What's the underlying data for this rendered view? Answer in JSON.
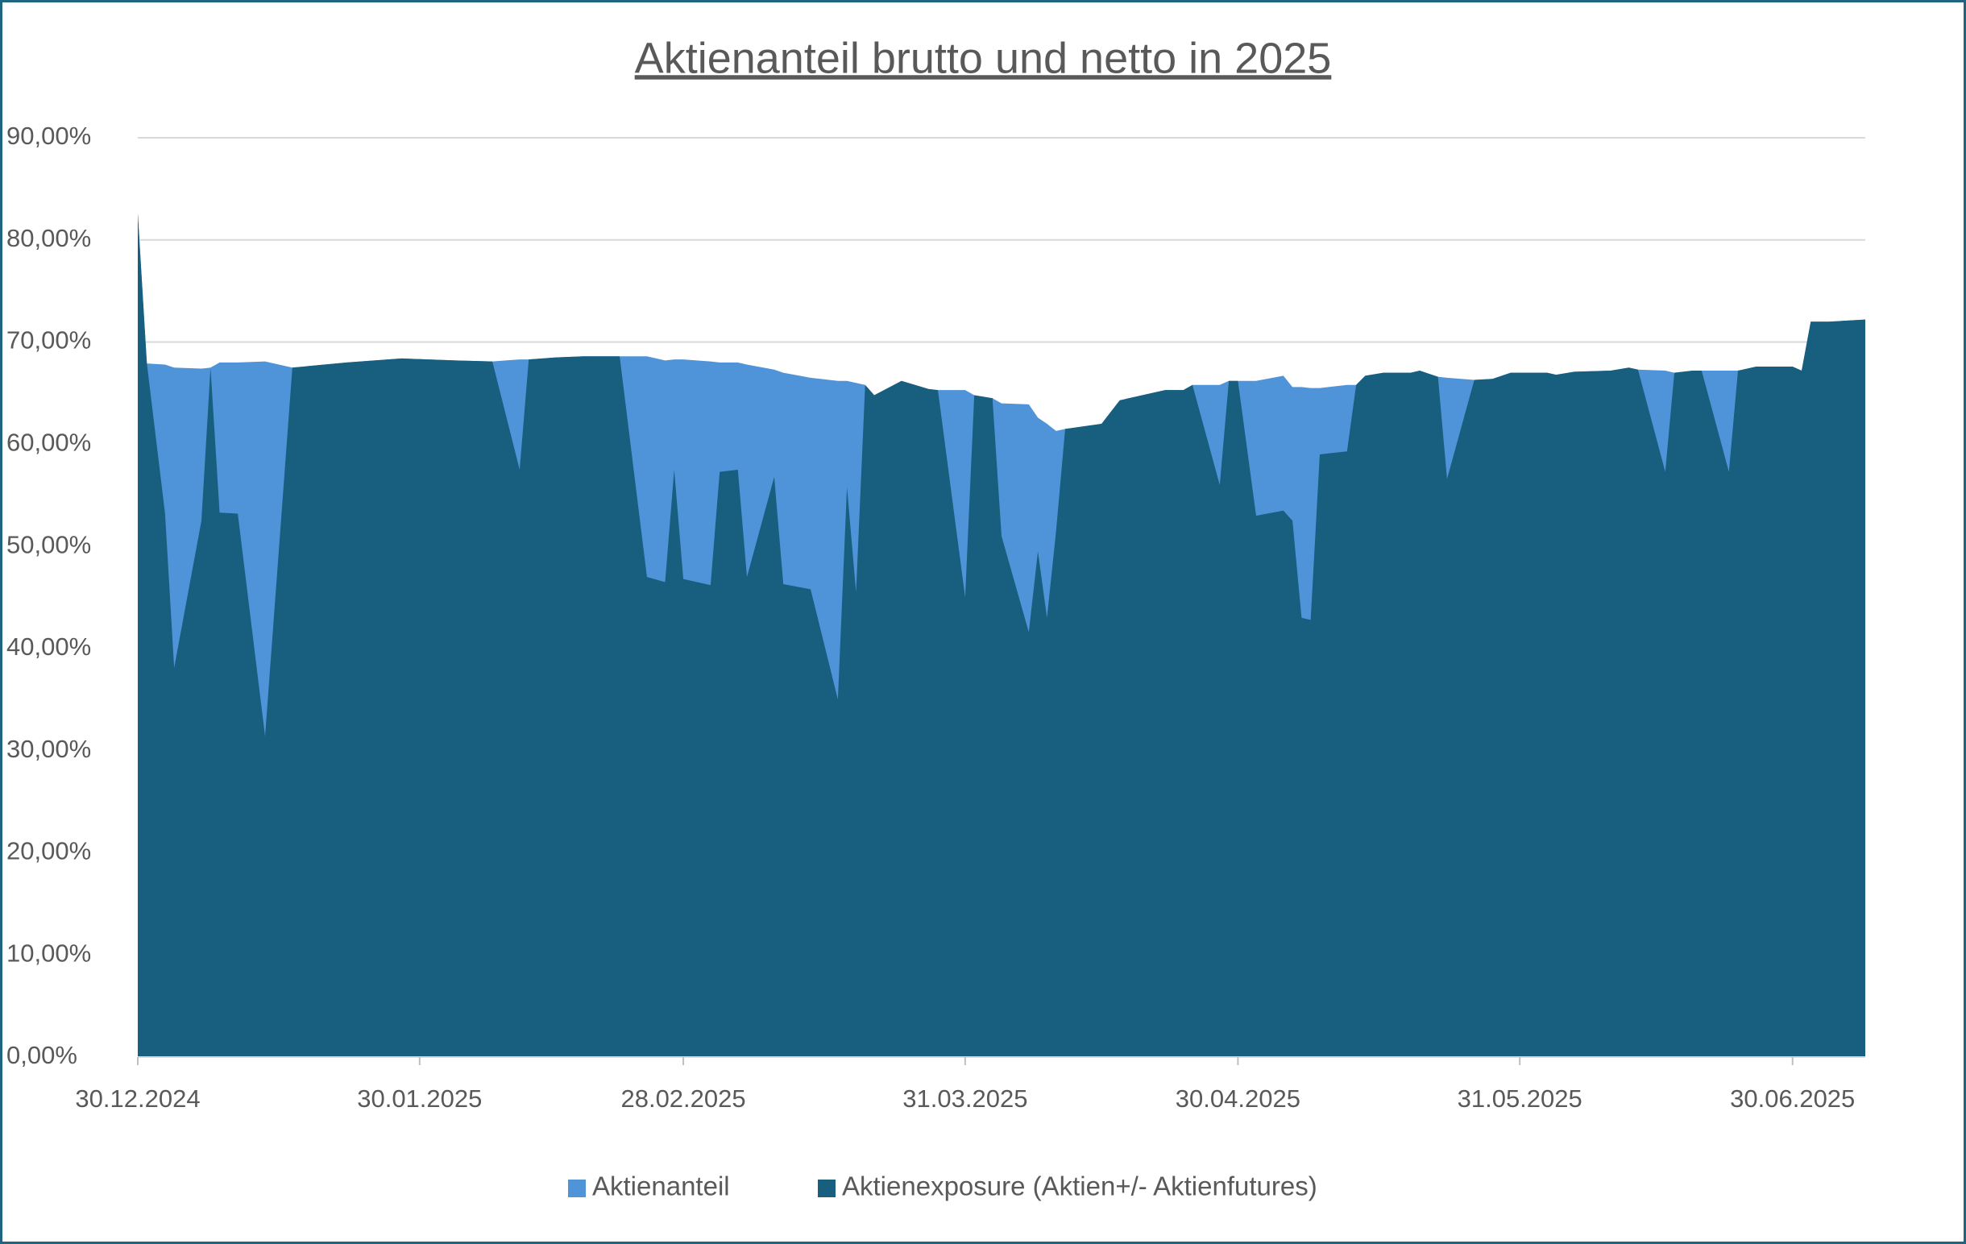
{
  "chart_data": {
    "type": "area",
    "title": "Aktienanteil brutto und netto in 2025",
    "x": [
      "30.12.2024",
      "31.12.2024",
      "02.01.2025",
      "03.01.2025",
      "06.01.2025",
      "07.01.2025",
      "08.01.2025",
      "10.01.2025",
      "13.01.2025",
      "16.01.2025",
      "22.01.2025",
      "28.01.2025",
      "03.02.2025",
      "07.02.2025",
      "10.02.2025",
      "11.02.2025",
      "14.02.2025",
      "17.02.2025",
      "21.02.2025",
      "24.02.2025",
      "26.02.2025",
      "27.02.2025",
      "28.02.2025",
      "03.03.2025",
      "04.03.2025",
      "06.03.2025",
      "07.03.2025",
      "10.03.2025",
      "11.03.2025",
      "14.03.2025",
      "17.03.2025",
      "18.03.2025",
      "19.03.2025",
      "20.03.2025",
      "21.03.2025",
      "24.03.2025",
      "27.03.2025",
      "28.03.2025",
      "31.03.2025",
      "01.04.2025",
      "03.04.2025",
      "04.04.2025",
      "07.04.2025",
      "08.04.2025",
      "09.04.2025",
      "10.04.2025",
      "11.04.2025",
      "15.04.2025",
      "17.04.2025",
      "22.04.2025",
      "24.04.2025",
      "25.04.2025",
      "28.04.2025",
      "29.04.2025",
      "30.04.2025",
      "02.05.2025",
      "05.05.2025",
      "06.05.2025",
      "07.05.2025",
      "08.05.2025",
      "09.05.2025",
      "12.05.2025",
      "13.05.2025",
      "14.05.2025",
      "16.05.2025",
      "19.05.2025",
      "20.05.2025",
      "22.05.2025",
      "23.05.2025",
      "26.05.2025",
      "28.05.2025",
      "30.05.2025",
      "03.06.2025",
      "04.06.2025",
      "06.06.2025",
      "10.06.2025",
      "12.06.2025",
      "13.06.2025",
      "16.06.2025",
      "17.06.2025",
      "19.06.2025",
      "20.06.2025",
      "23.06.2025",
      "24.06.2025",
      "26.06.2025",
      "30.06.2025",
      "01.07.2025",
      "02.07.2025",
      "04.07.2025",
      "08.07.2025"
    ],
    "series": [
      {
        "name": "Aktienanteil",
        "color": "#4f94d8",
        "values": [
          82.6,
          67.9,
          67.8,
          67.5,
          67.4,
          67.5,
          68,
          68,
          68.1,
          67.5,
          68,
          68.4,
          68.2,
          68.1,
          68.3,
          68.3,
          68.5,
          68.6,
          68.6,
          68.6,
          68.2,
          68.3,
          68.3,
          68.1,
          68,
          68,
          67.8,
          67.3,
          67,
          66.5,
          66.2,
          66.2,
          66,
          65.8,
          64.8,
          66.2,
          65.4,
          65.3,
          65.3,
          64.8,
          64.5,
          64,
          63.9,
          62.6,
          62,
          61.3,
          61.5,
          62,
          64.3,
          65.3,
          65.3,
          65.8,
          65.8,
          66.2,
          66.2,
          66.2,
          66.7,
          65.6,
          65.6,
          65.5,
          65.5,
          65.8,
          65.8,
          66.7,
          67,
          67,
          67.2,
          66.6,
          66.5,
          66.3,
          66.4,
          67,
          67,
          66.8,
          67.1,
          67.2,
          67.5,
          67.3,
          67.2,
          67,
          67.2,
          67.2,
          67.2,
          67.2,
          67.6,
          67.6,
          67.2,
          72,
          72,
          72.2
        ]
      },
      {
        "name": "Aktienexposure (Aktien+/- Aktienfutures)",
        "color": "#175e7f",
        "values": [
          82.6,
          67.9,
          53.2,
          38.1,
          52.5,
          67.5,
          53.3,
          53.2,
          31.4,
          67.5,
          68,
          68.4,
          68.2,
          68.1,
          57.5,
          68.3,
          68.5,
          68.6,
          68.6,
          47,
          46.5,
          57.5,
          46.8,
          46.2,
          57.3,
          57.5,
          47,
          56.8,
          46.3,
          45.8,
          35,
          55.8,
          45.5,
          65.8,
          64.8,
          66.2,
          65.4,
          65.3,
          45,
          64.8,
          64.5,
          51,
          41.6,
          49.5,
          43,
          51.5,
          61.5,
          62,
          64.3,
          65.3,
          65.3,
          65.8,
          56,
          66.2,
          66.2,
          53,
          53.5,
          52.5,
          43,
          42.8,
          59,
          59.3,
          65.8,
          66.7,
          67,
          67,
          67.2,
          66.6,
          56.6,
          66.3,
          66.4,
          67,
          67,
          66.8,
          67.1,
          67.2,
          67.5,
          67.3,
          57.3,
          67,
          67.2,
          67.2,
          57.3,
          67.2,
          67.6,
          67.6,
          67.2,
          72,
          72,
          72.2
        ]
      }
    ],
    "xlim": [
      "30.12.2024",
      "08.07.2025"
    ],
    "xticks": [
      "30.12.2024",
      "30.01.2025",
      "28.02.2025",
      "31.03.2025",
      "30.04.2025",
      "31.05.2025",
      "30.06.2025"
    ],
    "ylim": [
      0,
      90
    ],
    "yticks": [
      {
        "value": 0,
        "label": "0,00%"
      },
      {
        "value": 10,
        "label": "10,00%"
      },
      {
        "value": 20,
        "label": "20,00%"
      },
      {
        "value": 30,
        "label": "30,00%"
      },
      {
        "value": 40,
        "label": "40,00%"
      },
      {
        "value": 50,
        "label": "50,00%"
      },
      {
        "value": 60,
        "label": "60,00%"
      },
      {
        "value": 70,
        "label": "70,00%"
      },
      {
        "value": 80,
        "label": "80,00%"
      },
      {
        "value": 90,
        "label": "90,00%"
      }
    ],
    "grid": true,
    "legend": "bottom"
  }
}
